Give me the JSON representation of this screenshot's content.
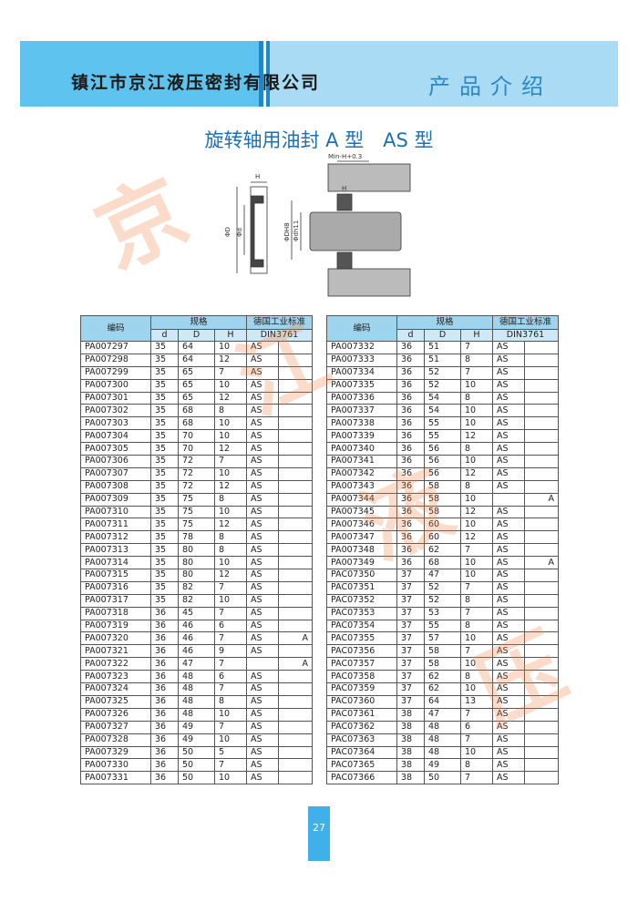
{
  "header": {
    "company": "镇江市京江液压密封有限公司",
    "section": "产品介绍"
  },
  "title": "旋转轴用油封 A 型　AS 型",
  "diagram": {
    "labels": [
      "Min-H+0.3",
      "H",
      "ΦD",
      "Φd",
      "H",
      "ΦDH8",
      "Φdh11"
    ]
  },
  "watermark": [
    "京",
    "江",
    "液",
    "压"
  ],
  "table_header": {
    "code": "编码",
    "spec": "规格",
    "d": "d",
    "D": "D",
    "H": "H",
    "standard": "德国工业标准",
    "din": "DIN3761"
  },
  "tables": [
    {
      "rows": [
        [
          "PA007297",
          35,
          64,
          10,
          "AS",
          null
        ],
        [
          "PA007298",
          35,
          64,
          12,
          "AS",
          null
        ],
        [
          "PA007299",
          35,
          65,
          7,
          "AS",
          null
        ],
        [
          "PA007300",
          35,
          65,
          10,
          "AS",
          null
        ],
        [
          "PA007301",
          35,
          65,
          12,
          "AS",
          null
        ],
        [
          "PA007302",
          35,
          68,
          8,
          "AS",
          null
        ],
        [
          "PA007303",
          35,
          68,
          10,
          "AS",
          null
        ],
        [
          "PA007304",
          35,
          70,
          10,
          "AS",
          null
        ],
        [
          "PA007305",
          35,
          70,
          12,
          "AS",
          null
        ],
        [
          "PA007306",
          35,
          72,
          7,
          "AS",
          null
        ],
        [
          "PA007307",
          35,
          72,
          10,
          "AS",
          null
        ],
        [
          "PA007308",
          35,
          72,
          12,
          "AS",
          null
        ],
        [
          "PA007309",
          35,
          75,
          8,
          "AS",
          null
        ],
        [
          "PA007310",
          35,
          75,
          10,
          "AS",
          null
        ],
        [
          "PA007311",
          35,
          75,
          12,
          "AS",
          null
        ],
        [
          "PA007312",
          35,
          78,
          8,
          "AS",
          null
        ],
        [
          "PA007313",
          35,
          80,
          8,
          "AS",
          null
        ],
        [
          "PA007314",
          35,
          80,
          10,
          "AS",
          null
        ],
        [
          "PA007315",
          35,
          80,
          12,
          "AS",
          null
        ],
        [
          "PA007316",
          35,
          82,
          7,
          "AS",
          null
        ],
        [
          "PA007317",
          35,
          82,
          10,
          "AS",
          null
        ],
        [
          "PA007318",
          36,
          45,
          7,
          "AS",
          null
        ],
        [
          "PA007319",
          36,
          46,
          6,
          "AS",
          null
        ],
        [
          "PA007320",
          36,
          46,
          7,
          "AS",
          "A"
        ],
        [
          "PA007321",
          36,
          46,
          9,
          "AS",
          null
        ],
        [
          "PA007322",
          36,
          47,
          7,
          null,
          "A"
        ],
        [
          "PA007323",
          36,
          48,
          6,
          "AS",
          null
        ],
        [
          "PA007324",
          36,
          48,
          7,
          "AS",
          null
        ],
        [
          "PA007325",
          36,
          48,
          8,
          "AS",
          null
        ],
        [
          "PA007326",
          36,
          48,
          10,
          "AS",
          null
        ],
        [
          "PA007327",
          36,
          49,
          7,
          "AS",
          null
        ],
        [
          "PA007328",
          36,
          49,
          10,
          "AS",
          null
        ],
        [
          "PA007329",
          36,
          50,
          5,
          "AS",
          null
        ],
        [
          "PA007330",
          36,
          50,
          7,
          "AS",
          null
        ],
        [
          "PA007331",
          36,
          50,
          10,
          "AS",
          null
        ]
      ]
    },
    {
      "rows": [
        [
          "PA007332",
          36,
          51,
          7,
          "AS",
          null
        ],
        [
          "PA007333",
          36,
          51,
          8,
          "AS",
          null
        ],
        [
          "PA007334",
          36,
          52,
          7,
          "AS",
          null
        ],
        [
          "PA007335",
          36,
          52,
          10,
          "AS",
          null
        ],
        [
          "PA007336",
          36,
          54,
          8,
          "AS",
          null
        ],
        [
          "PA007337",
          36,
          54,
          10,
          "AS",
          null
        ],
        [
          "PA007338",
          36,
          55,
          10,
          "AS",
          null
        ],
        [
          "PA007339",
          36,
          55,
          12,
          "AS",
          null
        ],
        [
          "PA007340",
          36,
          56,
          8,
          "AS",
          null
        ],
        [
          "PA007341",
          36,
          56,
          10,
          "AS",
          null
        ],
        [
          "PA007342",
          36,
          56,
          12,
          "AS",
          null
        ],
        [
          "PA007343",
          36,
          58,
          8,
          "AS",
          null
        ],
        [
          "PA007344",
          36,
          58,
          10,
          null,
          "A"
        ],
        [
          "PA007345",
          36,
          58,
          12,
          "AS",
          null
        ],
        [
          "PA007346",
          36,
          60,
          10,
          "AS",
          null
        ],
        [
          "PA007347",
          36,
          60,
          12,
          "AS",
          null
        ],
        [
          "PA007348",
          36,
          62,
          7,
          "AS",
          null
        ],
        [
          "PA007349",
          36,
          68,
          10,
          "AS",
          "A"
        ],
        [
          "PAC07350",
          37,
          47,
          10,
          "AS",
          null
        ],
        [
          "PAC07351",
          37,
          52,
          7,
          "AS",
          null
        ],
        [
          "PAC07352",
          37,
          52,
          8,
          "AS",
          null
        ],
        [
          "PAC07353",
          37,
          53,
          7,
          "AS",
          null
        ],
        [
          "PAC07354",
          37,
          55,
          8,
          "AS",
          null
        ],
        [
          "PAC07355",
          37,
          57,
          10,
          "AS",
          null
        ],
        [
          "PAC07356",
          37,
          58,
          7,
          "AS",
          null
        ],
        [
          "PAC07357",
          37,
          58,
          10,
          "AS",
          null
        ],
        [
          "PAC07358",
          37,
          62,
          8,
          "AS",
          null
        ],
        [
          "PAC07359",
          37,
          62,
          10,
          "AS",
          null
        ],
        [
          "PAC07360",
          37,
          64,
          13,
          "AS",
          null
        ],
        [
          "PAC07361",
          38,
          47,
          7,
          "AS",
          null
        ],
        [
          "PAC07362",
          38,
          48,
          6,
          "AS",
          null
        ],
        [
          "PAC07363",
          38,
          48,
          7,
          "AS",
          null
        ],
        [
          "PAC07364",
          38,
          48,
          10,
          "AS",
          null
        ],
        [
          "PAC07365",
          38,
          49,
          8,
          "AS",
          null
        ],
        [
          "PAC07366",
          38,
          50,
          7,
          "AS",
          null
        ]
      ]
    }
  ],
  "page_number": "27"
}
